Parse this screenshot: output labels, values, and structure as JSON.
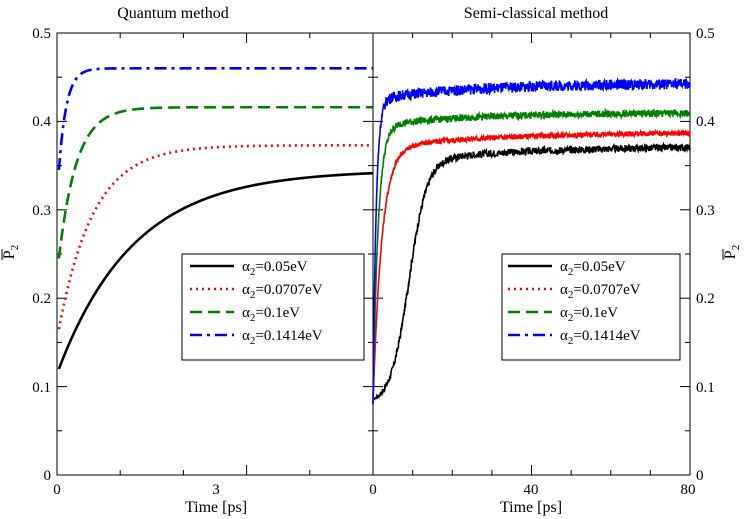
{
  "chart_data": [
    {
      "type": "line",
      "title": "Quantum method",
      "xlabel": "Time [ps]",
      "ylabel": "P2",
      "xlim": [
        0,
        5
      ],
      "ylim": [
        0,
        0.5
      ],
      "xticks": [
        0,
        3
      ],
      "yticks": [
        0,
        0.1,
        0.2,
        0.3,
        0.4,
        0.5
      ],
      "ytick_labels": [
        "0",
        "0.1",
        "0.2",
        "0.3",
        "0.4",
        "0.5"
      ],
      "legend": "center-right",
      "series": [
        {
          "name": "α2=0.05eV",
          "label_base": "α",
          "label_sub": "2",
          "label_rest": "=0.05eV",
          "color": "#000000",
          "style": "solid",
          "start": 0.12,
          "plateau": 0.345,
          "tau": 1.2
        },
        {
          "name": "α2=0.0707eV",
          "label_base": "α",
          "label_sub": "2",
          "label_rest": "=0.0707eV",
          "color": "#ff0000",
          "style": "dotted",
          "start": 0.165,
          "plateau": 0.373,
          "tau": 0.55
        },
        {
          "name": "α2=0.1eV",
          "label_base": "α",
          "label_sub": "2",
          "label_rest": "=0.1eV",
          "color": "#008000",
          "style": "dashed",
          "start": 0.245,
          "plateau": 0.416,
          "tau": 0.28
        },
        {
          "name": "α2=0.1414eV",
          "label_base": "α",
          "label_sub": "2",
          "label_rest": "=0.1414eV",
          "color": "#0000ff",
          "style": "dashdot",
          "start": 0.345,
          "plateau": 0.46,
          "tau": 0.12
        }
      ]
    },
    {
      "type": "line",
      "title": "Semi-classical method",
      "xlabel": "Time [ps]",
      "ylabel": "P2",
      "xlim": [
        0,
        80
      ],
      "ylim": [
        0,
        0.5
      ],
      "xticks": [
        0,
        40,
        80
      ],
      "yticks": [
        0,
        0.1,
        0.2,
        0.3,
        0.4,
        0.5
      ],
      "ytick_labels": [
        "0",
        "0.1",
        "0.2",
        "0.3",
        "0.4",
        "0.5"
      ],
      "legend": "center-right",
      "series": [
        {
          "name": "α2=0.05eV",
          "label_base": "α",
          "label_sub": "2",
          "label_rest": "=0.05eV",
          "color": "#000000",
          "style": "solid",
          "start": 0.08,
          "mid": 0.35,
          "plateau": 0.372,
          "tau_rise": 4.5,
          "tau_slow": 30,
          "noise": 0.004
        },
        {
          "name": "α2=0.0707eV",
          "label_base": "α",
          "label_sub": "2",
          "label_rest": "=0.0707eV",
          "color": "#ff0000",
          "style": "dotted",
          "start": 0.08,
          "mid": 0.37,
          "plateau": 0.388,
          "tau_rise": 2.2,
          "tau_slow": 30,
          "noise": 0.003
        },
        {
          "name": "α2=0.1eV",
          "label_base": "α",
          "label_sub": "2",
          "label_rest": "=0.1eV",
          "color": "#008000",
          "style": "dashed",
          "start": 0.08,
          "mid": 0.395,
          "plateau": 0.41,
          "tau_rise": 1.3,
          "tau_slow": 25,
          "noise": 0.004
        },
        {
          "name": "α2=0.1414eV",
          "label_base": "α",
          "label_sub": "2",
          "label_rest": "=0.1414eV",
          "color": "#0000ff",
          "style": "dashdot",
          "start": 0.08,
          "mid": 0.425,
          "plateau": 0.443,
          "tau_rise": 0.8,
          "tau_slow": 25,
          "noise": 0.006
        }
      ]
    }
  ]
}
